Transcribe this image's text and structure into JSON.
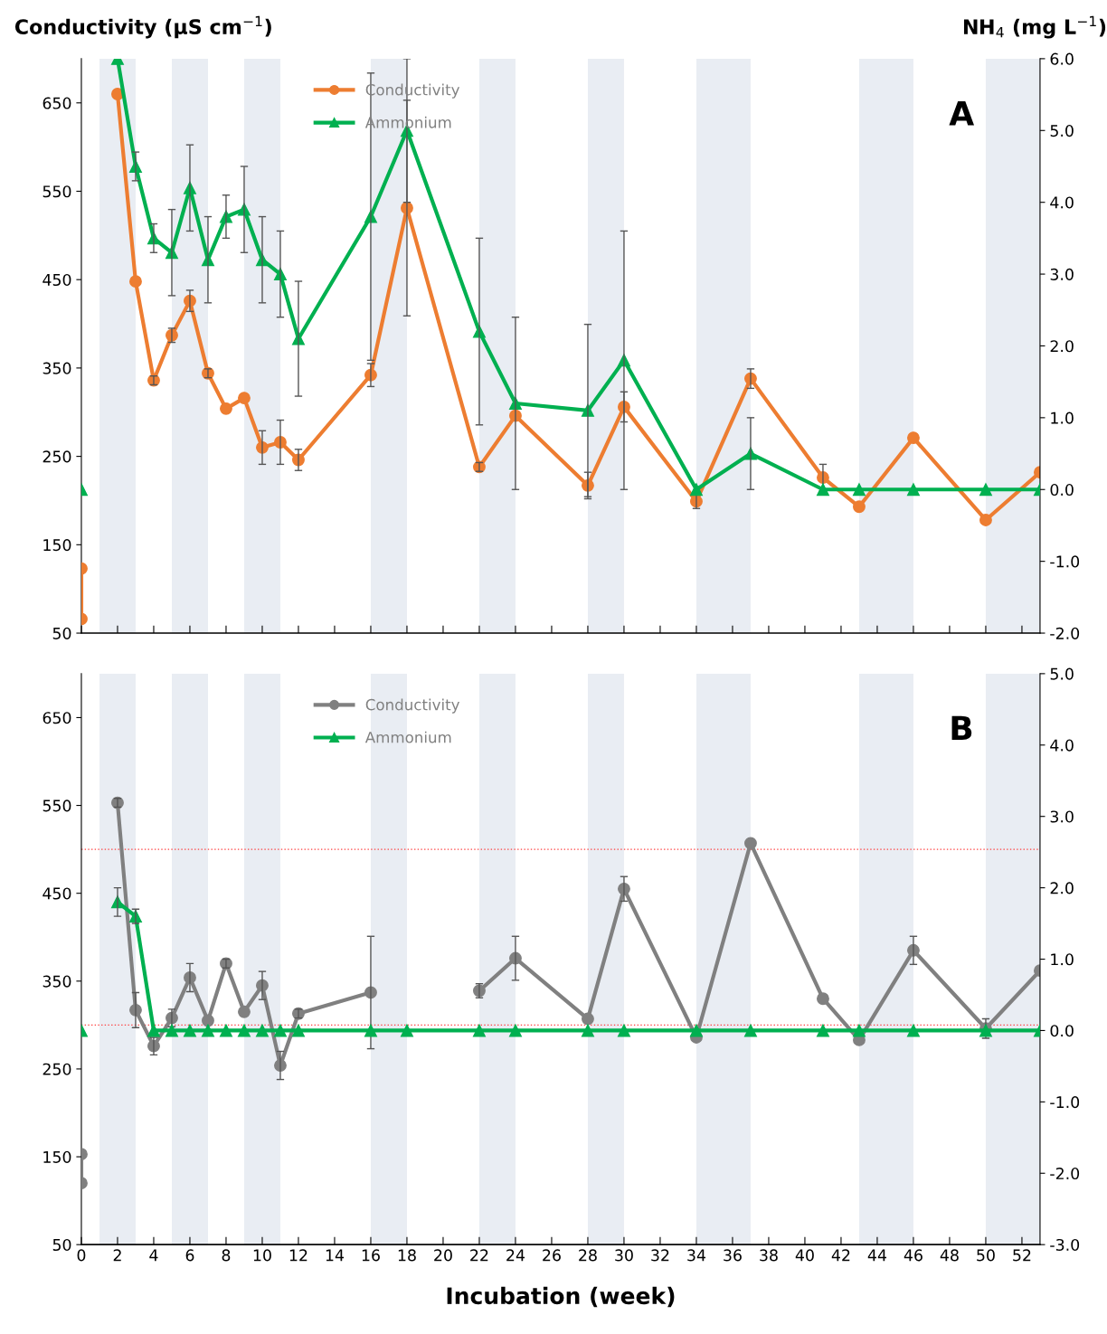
{
  "chart_data": [
    {
      "type": "line",
      "ylabel": "Conductivity (μS cm$^{−1}$)",
      "y2label": "NH$_{4}$ (mg L$^{−1}$)",
      "annotations": [
        "A"
      ],
      "legend": "top",
      "grid": false,
      "tick_labels": "y",
      "xlim": [
        0,
        53
      ],
      "xticks": [
        {
          "value": 0,
          "label": null
        },
        {
          "value": 2,
          "label": null
        },
        {
          "value": 4,
          "label": null
        },
        {
          "value": 6,
          "label": null
        },
        {
          "value": 8,
          "label": null
        },
        {
          "value": 10,
          "label": null
        },
        {
          "value": 12,
          "label": null
        },
        {
          "value": 14,
          "label": null
        },
        {
          "value": 16,
          "label": null
        },
        {
          "value": 18,
          "label": null
        },
        {
          "value": 20,
          "label": null
        },
        {
          "value": 22,
          "label": null
        },
        {
          "value": 24,
          "label": null
        },
        {
          "value": 26,
          "label": null
        },
        {
          "value": 28,
          "label": null
        },
        {
          "value": 30,
          "label": null
        },
        {
          "value": 32,
          "label": null
        },
        {
          "value": 34,
          "label": null
        },
        {
          "value": 36,
          "label": null
        },
        {
          "value": 38,
          "label": null
        },
        {
          "value": 40,
          "label": null
        },
        {
          "value": 42,
          "label": null
        },
        {
          "value": 44,
          "label": null
        },
        {
          "value": 46,
          "label": null
        },
        {
          "value": 48,
          "label": null
        },
        {
          "value": 50,
          "label": null
        },
        {
          "value": 52,
          "label": null
        }
      ],
      "ylim": [
        50,
        700
      ],
      "yticks": [
        50,
        150,
        250,
        350,
        450,
        550,
        650
      ],
      "y2lim": [
        -2,
        6
      ],
      "y2ticks": [
        {
          "value": -2,
          "label": "-2.0"
        },
        {
          "value": -1,
          "label": "-1.0"
        },
        {
          "value": 0,
          "label": "0.0"
        },
        {
          "value": 1,
          "label": "1.0"
        },
        {
          "value": 2,
          "label": "2.0"
        },
        {
          "value": 3,
          "label": "3.0"
        },
        {
          "value": 4,
          "label": "4.0"
        },
        {
          "value": 5,
          "label": "5.0"
        },
        {
          "value": 6,
          "label": "6.0"
        }
      ],
      "bands": [
        {
          "axis": "x",
          "from": 1,
          "to": 3,
          "color": "#e9edf3"
        },
        {
          "axis": "x",
          "from": 5,
          "to": 7,
          "color": "#e9edf3"
        },
        {
          "axis": "x",
          "from": 9,
          "to": 11,
          "color": "#e9edf3"
        },
        {
          "axis": "x",
          "from": 16,
          "to": 18,
          "color": "#e9edf3"
        },
        {
          "axis": "x",
          "from": 22,
          "to": 24,
          "color": "#e9edf3"
        },
        {
          "axis": "x",
          "from": 28,
          "to": 30,
          "color": "#e9edf3"
        },
        {
          "axis": "x",
          "from": 34,
          "to": 37,
          "color": "#e9edf3"
        },
        {
          "axis": "x",
          "from": 43,
          "to": 46,
          "color": "#e9edf3"
        },
        {
          "axis": "x",
          "from": 50,
          "to": 53,
          "color": "#e9edf3"
        }
      ],
      "series": [
        {
          "name": "Conductivity",
          "color": "#ed7d31",
          "marker": "circle",
          "x": [
            0,
            0,
            1,
            2,
            3,
            4,
            5,
            6,
            7,
            8,
            9,
            10,
            11,
            12,
            16,
            18,
            22,
            24,
            28,
            30,
            34,
            37,
            41,
            43,
            46,
            50,
            53
          ],
          "values": [
            123,
            66,
            null,
            660,
            448,
            336,
            387,
            426,
            344,
            304,
            316,
            260,
            266,
            246,
            342,
            531,
            238,
            296,
            217,
            306,
            199,
            338,
            226,
            193,
            271,
            178,
            232
          ],
          "errors": [
            null,
            null,
            null,
            null,
            null,
            5,
            8,
            12,
            5,
            null,
            null,
            19,
            25,
            12,
            13,
            122,
            5,
            null,
            15,
            17,
            8,
            11,
            15,
            null,
            null,
            null,
            null
          ]
        },
        {
          "name": "Ammonium",
          "color": "#00b050",
          "marker": "triangle",
          "axis": "y2",
          "x": [
            0,
            1,
            2,
            3,
            4,
            5,
            6,
            7,
            8,
            9,
            10,
            11,
            12,
            16,
            18,
            22,
            24,
            28,
            30,
            34,
            37,
            41,
            43,
            46,
            50,
            53
          ],
          "values": [
            0.0,
            null,
            6.0,
            4.5,
            3.5,
            3.3,
            4.2,
            3.2,
            3.8,
            3.9,
            3.2,
            3.0,
            2.1,
            3.8,
            5.0,
            2.2,
            1.2,
            1.1,
            1.8,
            0.0,
            0.5,
            0.0,
            0.0,
            0.0,
            0.0,
            0.0
          ],
          "errors": [
            null,
            null,
            null,
            0.2,
            0.2,
            0.6,
            0.6,
            0.6,
            0.3,
            0.6,
            0.6,
            0.6,
            0.8,
            2.0,
            1.0,
            1.3,
            1.2,
            1.2,
            1.8,
            null,
            0.5,
            null,
            null,
            null,
            null,
            null
          ]
        }
      ]
    },
    {
      "type": "line",
      "xlabel": "Incubation (week)",
      "annotations": [
        "B"
      ],
      "legend": "top",
      "grid": false,
      "xlim": [
        0,
        53
      ],
      "xticks": [
        0,
        2,
        4,
        6,
        8,
        10,
        12,
        14,
        16,
        18,
        20,
        22,
        24,
        26,
        28,
        30,
        32,
        34,
        36,
        38,
        40,
        42,
        44,
        46,
        48,
        50,
        52
      ],
      "ylim": [
        50,
        700
      ],
      "yticks": [
        50,
        150,
        250,
        350,
        450,
        550,
        650
      ],
      "y2lim": [
        -3,
        5
      ],
      "y2ticks": [
        {
          "value": -3,
          "label": "-3.0"
        },
        {
          "value": -2,
          "label": "-2.0"
        },
        {
          "value": -1,
          "label": "-1.0"
        },
        {
          "value": 0,
          "label": "0.0"
        },
        {
          "value": 1,
          "label": "1.0"
        },
        {
          "value": 2,
          "label": "2.0"
        },
        {
          "value": 3,
          "label": "3.0"
        },
        {
          "value": 4,
          "label": "4.0"
        },
        {
          "value": 5,
          "label": "5.0"
        }
      ],
      "bands": [
        {
          "axis": "x",
          "from": 1,
          "to": 3,
          "color": "#e9edf3"
        },
        {
          "axis": "x",
          "from": 5,
          "to": 7,
          "color": "#e9edf3"
        },
        {
          "axis": "x",
          "from": 9,
          "to": 11,
          "color": "#e9edf3"
        },
        {
          "axis": "x",
          "from": 16,
          "to": 18,
          "color": "#e9edf3"
        },
        {
          "axis": "x",
          "from": 22,
          "to": 24,
          "color": "#e9edf3"
        },
        {
          "axis": "x",
          "from": 28,
          "to": 30,
          "color": "#e9edf3"
        },
        {
          "axis": "x",
          "from": 34,
          "to": 37,
          "color": "#e9edf3"
        },
        {
          "axis": "x",
          "from": 43,
          "to": 46,
          "color": "#e9edf3"
        },
        {
          "axis": "x",
          "from": 50,
          "to": 53,
          "color": "#e9edf3"
        }
      ],
      "ref_lines": [
        {
          "axis": "y",
          "value": 500,
          "color": "#ff4040",
          "line_style": "dotted"
        },
        {
          "axis": "y",
          "value": 300,
          "color": "#ff4040",
          "line_style": "dotted"
        }
      ],
      "series": [
        {
          "name": "Conductivity",
          "color": "#808080",
          "marker": "circle",
          "x": [
            0,
            0,
            1,
            2,
            3,
            4,
            5,
            6,
            7,
            8,
            9,
            10,
            11,
            12,
            16,
            18,
            22,
            24,
            28,
            30,
            34,
            37,
            41,
            43,
            46,
            50,
            53
          ],
          "values": [
            153,
            120,
            null,
            553,
            317,
            276,
            308,
            354,
            305,
            370,
            315,
            345,
            254,
            313,
            337,
            null,
            339,
            376,
            307,
            455,
            286,
            507,
            330,
            283,
            385,
            296,
            362
          ],
          "errors": [
            null,
            null,
            null,
            5,
            20,
            10,
            10,
            16,
            null,
            5,
            null,
            16,
            16,
            5,
            64,
            null,
            8,
            25,
            null,
            14,
            null,
            null,
            null,
            null,
            16,
            11,
            null
          ]
        },
        {
          "name": "Ammonium",
          "color": "#00b050",
          "marker": "triangle",
          "axis": "y2",
          "x": [
            0,
            1,
            2,
            3,
            4,
            5,
            6,
            7,
            8,
            9,
            10,
            11,
            12,
            16,
            18,
            22,
            24,
            28,
            30,
            34,
            37,
            41,
            43,
            46,
            50,
            53
          ],
          "values": [
            0.0,
            null,
            1.8,
            1.6,
            0.0,
            0.0,
            0.0,
            0.0,
            0.0,
            0.0,
            0.0,
            0.0,
            0.0,
            0.0,
            0.0,
            0.0,
            0.0,
            0.0,
            0.0,
            0.0,
            0.0,
            0.0,
            0.0,
            0.0,
            0.0,
            0.0
          ],
          "errors": [
            null,
            null,
            0.2,
            0.1,
            null,
            null,
            null,
            null,
            null,
            null,
            null,
            null,
            null,
            null,
            null,
            null,
            null,
            null,
            null,
            null,
            null,
            null,
            null,
            null,
            null,
            null
          ]
        }
      ]
    }
  ]
}
